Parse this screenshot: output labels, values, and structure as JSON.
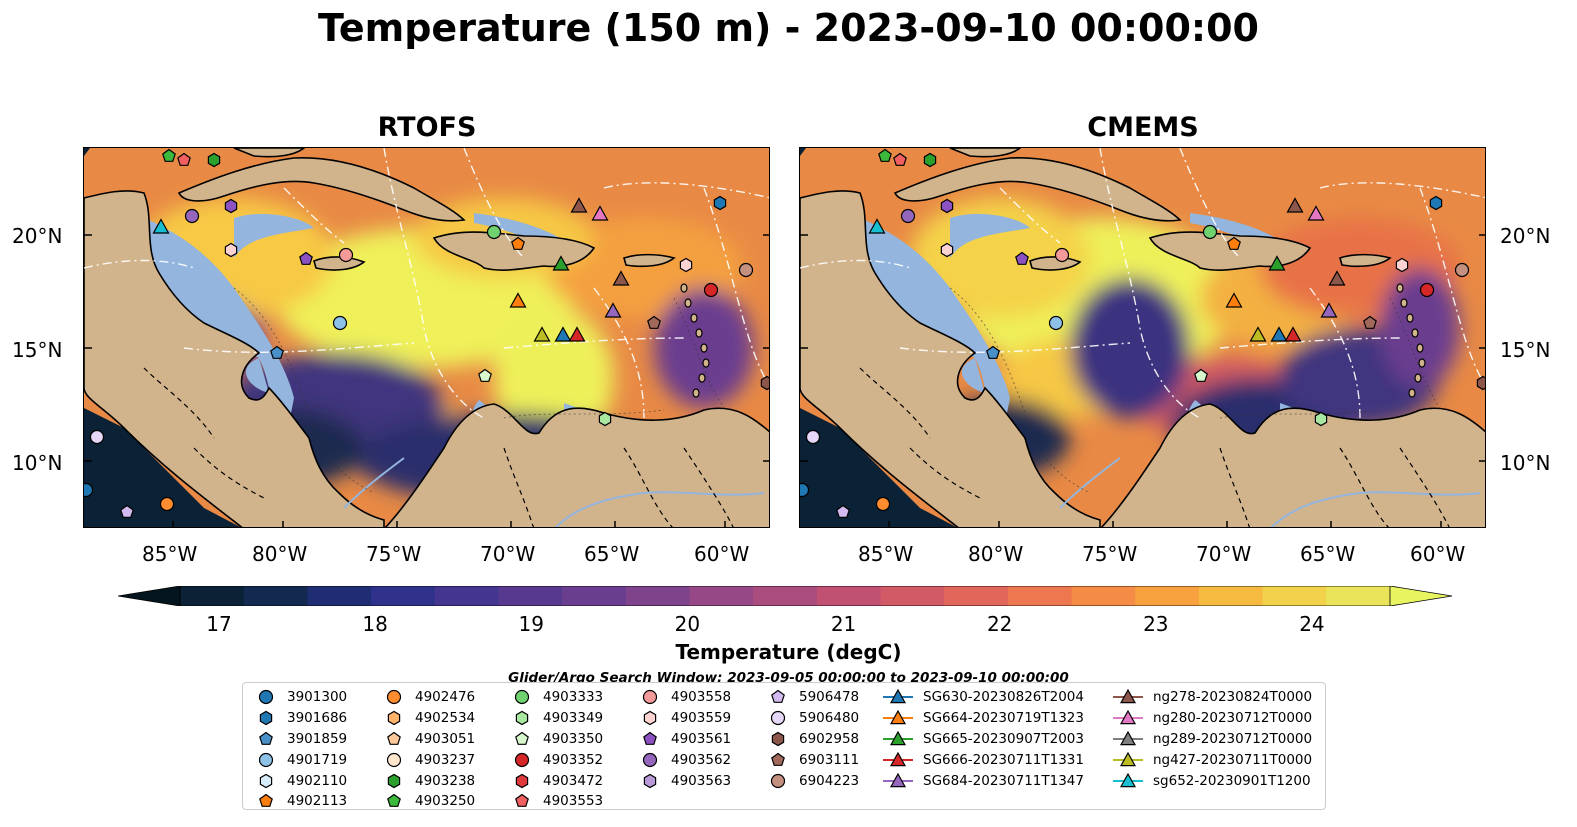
{
  "title": "Temperature (150 m) - 2023-09-10 00:00:00",
  "panels": [
    {
      "title": "RTOFS"
    },
    {
      "title": "CMEMS"
    }
  ],
  "axes": {
    "lon_labels": [
      "85°W",
      "80°W",
      "75°W",
      "70°W",
      "65°W",
      "60°W"
    ],
    "lat_labels": [
      "20°N",
      "15°N",
      "10°N"
    ]
  },
  "colorbar": {
    "label": "Temperature (degC)",
    "ticks": [
      "17",
      "18",
      "19",
      "20",
      "21",
      "22",
      "23",
      "24"
    ],
    "min": 16.75,
    "max": 24.5,
    "colors": [
      "#0a2136",
      "#13294f",
      "#1f2d72",
      "#30318b",
      "#443591",
      "#57398f",
      "#6a3e8f",
      "#7f438c",
      "#954786",
      "#ab4c7e",
      "#c05173",
      "#d25a67",
      "#e3665a",
      "#ef774f",
      "#f58c45",
      "#f7a23f",
      "#f6ba40",
      "#f2d24b",
      "#eae45a"
    ],
    "over_color": "#e8f460",
    "under_color": "#05151f"
  },
  "search_window": "Glider/Argo Search Window: 2023-09-05 00:00:00 to 2023-09-10 00:00:00",
  "legend": [
    [
      {
        "label": "3901300",
        "marker": "circle",
        "color": "#1f77b4"
      },
      {
        "label": "3901686",
        "marker": "hexagon",
        "color": "#1f77b4"
      },
      {
        "label": "3901859",
        "marker": "pentagon",
        "color": "#4a90c8"
      },
      {
        "label": "4901719",
        "marker": "circle",
        "color": "#8ec1e8"
      },
      {
        "label": "4902110",
        "marker": "hexagon",
        "color": "#d6ecfa"
      },
      {
        "label": "4902113",
        "marker": "pentagon",
        "color": "#ff7f0e"
      }
    ],
    [
      {
        "label": "4902476",
        "marker": "circle",
        "color": "#ff8c2e"
      },
      {
        "label": "4902534",
        "marker": "hexagon",
        "color": "#ffb26b"
      },
      {
        "label": "4903051",
        "marker": "pentagon",
        "color": "#ffc89a"
      },
      {
        "label": "4903237",
        "marker": "circle",
        "color": "#ffe6cc"
      },
      {
        "label": "4903238",
        "marker": "hexagon",
        "color": "#2ca02c"
      },
      {
        "label": "4903250",
        "marker": "pentagon",
        "color": "#3cb83c"
      }
    ],
    [
      {
        "label": "4903333",
        "marker": "circle",
        "color": "#6fd16f"
      },
      {
        "label": "4903349",
        "marker": "hexagon",
        "color": "#a8e8a0"
      },
      {
        "label": "4903350",
        "marker": "pentagon",
        "color": "#d8f7cc"
      },
      {
        "label": "4903352",
        "marker": "circle",
        "color": "#d62728"
      },
      {
        "label": "4903472",
        "marker": "hexagon",
        "color": "#e0393a"
      },
      {
        "label": "4903553",
        "marker": "pentagon",
        "color": "#f06060"
      }
    ],
    [
      {
        "label": "4903558",
        "marker": "circle",
        "color": "#f59a9a"
      },
      {
        "label": "4903559",
        "marker": "hexagon",
        "color": "#fbd3d3"
      },
      {
        "label": "4903561",
        "marker": "pentagon",
        "color": "#8c52c4"
      },
      {
        "label": "4903562",
        "marker": "circle",
        "color": "#9467bd"
      },
      {
        "label": "4903563",
        "marker": "hexagon",
        "color": "#b89ad8"
      }
    ],
    [
      {
        "label": "5906478",
        "marker": "pentagon",
        "color": "#d2baf0"
      },
      {
        "label": "5906480",
        "marker": "circle",
        "color": "#e6d6f7"
      },
      {
        "label": "6902958",
        "marker": "hexagon",
        "color": "#8c564b"
      },
      {
        "label": "6903111",
        "marker": "pentagon",
        "color": "#a0695c"
      },
      {
        "label": "6904223",
        "marker": "circle",
        "color": "#c49080"
      }
    ],
    [
      {
        "label": "SG630-20230826T2004",
        "marker": "triangle-line",
        "color": "#1f77b4"
      },
      {
        "label": "SG664-20230719T1323",
        "marker": "triangle-line",
        "color": "#ff7f0e"
      },
      {
        "label": "SG665-20230907T2003",
        "marker": "triangle-line",
        "color": "#2ca02c"
      },
      {
        "label": "SG666-20230711T1331",
        "marker": "triangle-line",
        "color": "#d62728"
      },
      {
        "label": "SG684-20230711T1347",
        "marker": "triangle-line",
        "color": "#9467bd"
      }
    ],
    [
      {
        "label": "ng278-20230824T0000",
        "marker": "triangle-line",
        "color": "#8c564b"
      },
      {
        "label": "ng280-20230712T0000",
        "marker": "triangle-line",
        "color": "#e377c2"
      },
      {
        "label": "ng289-20230712T0000",
        "marker": "triangle-line",
        "color": "#7f7f7f"
      },
      {
        "label": "ng427-20230711T0000",
        "marker": "triangle-line",
        "color": "#bcbd22"
      },
      {
        "label": "sg652-20230901T1200",
        "marker": "triangle-line",
        "color": "#17becf"
      }
    ]
  ]
}
